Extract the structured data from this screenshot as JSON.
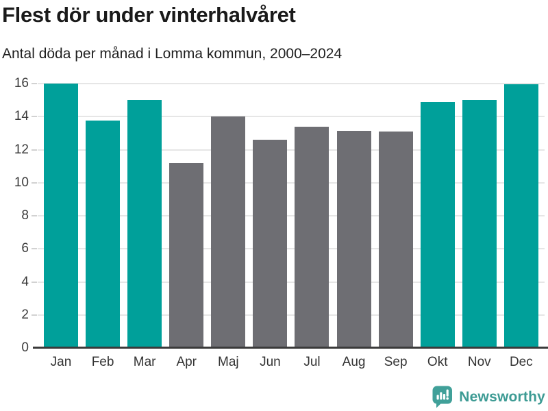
{
  "chart": {
    "title": "Flest dör under vinterhalvåret",
    "subtitle": "Antal döda per månad i Lomma kommun, 2000–2024"
  },
  "chart_data": {
    "type": "bar",
    "title": "Flest dör under vinterhalvåret",
    "subtitle": "Antal döda per månad i Lomma kommun, 2000–2024",
    "categories": [
      "Jan",
      "Feb",
      "Mar",
      "Apr",
      "Maj",
      "Jun",
      "Jul",
      "Aug",
      "Sep",
      "Okt",
      "Nov",
      "Dec"
    ],
    "values": [
      16.0,
      13.75,
      15.0,
      11.2,
      14.0,
      12.6,
      13.4,
      13.15,
      13.1,
      14.9,
      15.0,
      15.95
    ],
    "bar_color_keys": [
      "teal",
      "teal",
      "teal",
      "gray",
      "gray",
      "gray",
      "gray",
      "gray",
      "gray",
      "teal",
      "teal",
      "teal"
    ],
    "colors": {
      "teal": "#00a09a",
      "gray": "#6e6e73"
    },
    "xlabel": "",
    "ylabel": "",
    "ylim": [
      0,
      16
    ],
    "yticks": [
      0,
      2,
      4,
      6,
      8,
      10,
      12,
      14,
      16
    ],
    "grid": true,
    "legend": false,
    "highlight_meaning": "winter half-year months (Okt–Mar) in teal, summer months (Apr–Sep) in gray"
  },
  "footer": {
    "brand": "Newsworthy",
    "brand_color": "#3d9b94",
    "icon_color": "#40a099"
  }
}
